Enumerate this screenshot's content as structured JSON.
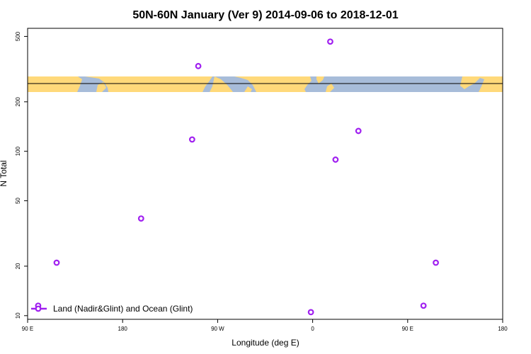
{
  "chart_data": {
    "type": "scatter",
    "title": "50N-60N January (Ver 9)   2014-09-06 to 2018-12-01",
    "xlabel": "Longitude (deg E)",
    "ylabel": "N Total",
    "xlim": [
      -90,
      180
    ],
    "ylim": [
      9.5,
      560
    ],
    "yscale": "log",
    "x_ticks": [
      {
        "value": -90,
        "label": "90 E"
      },
      {
        "value": -36,
        "label": "180"
      },
      {
        "value": 18,
        "label": "90 W"
      },
      {
        "value": 72,
        "label": "0"
      },
      {
        "value": 126,
        "label": "90 E"
      },
      {
        "value": 180,
        "label": "180"
      }
    ],
    "y_ticks": [
      {
        "value": 10,
        "label": "10"
      },
      {
        "value": 20,
        "label": "20"
      },
      {
        "value": 50,
        "label": "50"
      },
      {
        "value": 100,
        "label": "100"
      },
      {
        "value": 200,
        "label": "200"
      },
      {
        "value": 500,
        "label": "500"
      }
    ],
    "series": [
      {
        "name": "Land (Nadir&Glint) and Ocean (Glint)",
        "color": "#a020f0",
        "marker": "open-circle",
        "points": [
          {
            "x": -84,
            "y": 11.5
          },
          {
            "x": -73.5,
            "y": 21
          },
          {
            "x": -25.5,
            "y": 39
          },
          {
            "x": 3.5,
            "y": 118
          },
          {
            "x": 7,
            "y": 330
          },
          {
            "x": 71,
            "y": 10.5
          },
          {
            "x": 82,
            "y": 465
          },
          {
            "x": 85,
            "y": 89
          },
          {
            "x": 98,
            "y": 133
          },
          {
            "x": 135,
            "y": 11.5
          },
          {
            "x": 142,
            "y": 21
          }
        ]
      }
    ],
    "legend_position": "bottom-left",
    "map_strip": {
      "ocean_color": "#a7bcd9",
      "land_color": "#ffd97a",
      "line_color": "#000000"
    }
  }
}
